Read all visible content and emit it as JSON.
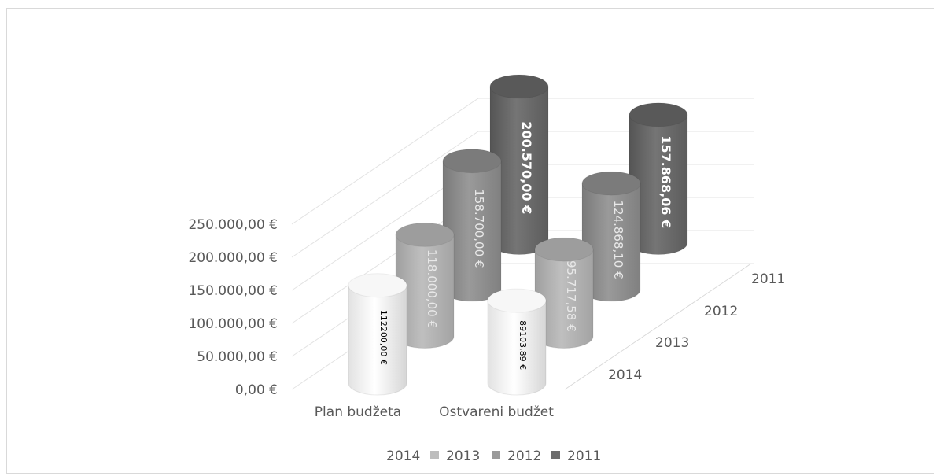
{
  "chart_data": {
    "type": "bar",
    "subtype": "3d-cylinder",
    "categories": [
      "Plan budžeta",
      "Ostvareni budžet"
    ],
    "depth_labels": [
      "2011",
      "2012",
      "2013",
      "2014"
    ],
    "series": [
      {
        "name": "2014",
        "values": [
          112200,
          89103.89
        ],
        "labels": [
          "112200,00 €",
          "89103,89 €"
        ],
        "color": "#ececec"
      },
      {
        "name": "2013",
        "values": [
          118000,
          95717.58
        ],
        "labels": [
          "118.000,00 €",
          "95.717,58 €"
        ],
        "color": "#b4b4b4"
      },
      {
        "name": "2012",
        "values": [
          158700,
          124868.1
        ],
        "labels": [
          "158.700,00 €",
          "124.868,10 €"
        ],
        "color": "#8d8d8d"
      },
      {
        "name": "2011",
        "values": [
          200570,
          157868.06
        ],
        "labels": [
          "200.570,00 €",
          "157.868,06 €"
        ],
        "color": "#6a6a6a"
      }
    ],
    "yticks": [
      "0,00 €",
      "50.000,00 €",
      "100.000,00 €",
      "150.000,00 €",
      "200.000,00 €",
      "250.000,00 €"
    ],
    "ylim": [
      0,
      250000
    ],
    "grid": true,
    "legend_position": "bottom"
  }
}
